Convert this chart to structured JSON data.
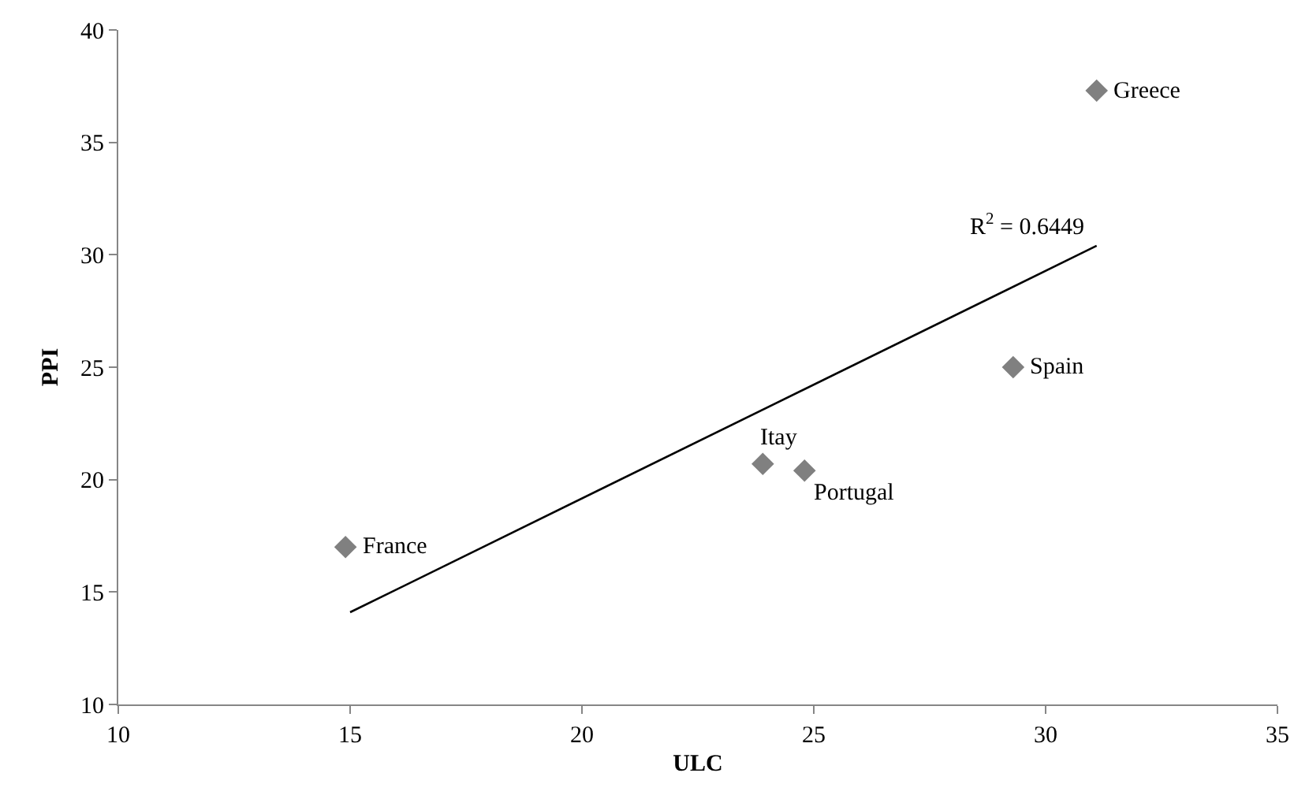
{
  "chart_data": {
    "type": "scatter",
    "xlabel": "ULC",
    "ylabel": "PPI",
    "xlim": [
      10,
      35
    ],
    "xticks": [
      10,
      15,
      20,
      25,
      30,
      35
    ],
    "ylim": [
      10,
      40
    ],
    "yticks": [
      10,
      15,
      20,
      25,
      30,
      35,
      40
    ],
    "series": [
      {
        "marker": "diamond",
        "color": "#808080",
        "x": [
          14.9,
          23.9,
          24.8,
          29.3,
          31.1
        ],
        "values": [
          17.0,
          20.7,
          20.4,
          25.0,
          37.3
        ]
      },
      {
        "type": "line",
        "marker": "none",
        "line_style": "solid",
        "color": "#000000",
        "x": [
          15.0,
          31.1
        ],
        "values": [
          14.1,
          30.4
        ]
      }
    ],
    "annotations": [
      {
        "text": "France",
        "x": 14.9,
        "y": 17.0
      },
      {
        "text": "Itay",
        "x": 23.9,
        "y": 20.7
      },
      {
        "text": "Portugal",
        "x": 24.8,
        "y": 20.4
      },
      {
        "text": "Spain",
        "x": 29.3,
        "y": 25.0
      },
      {
        "text": "Greece",
        "x": 31.1,
        "y": 37.3
      },
      {
        "text": "R$^{2}$ = 0.6449",
        "x": 31.1,
        "y": 30.4
      }
    ]
  }
}
